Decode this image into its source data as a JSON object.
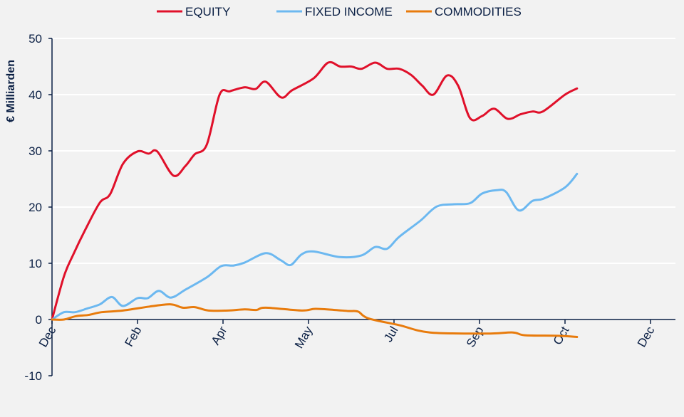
{
  "chart_data": {
    "type": "line",
    "title": "",
    "xlabel": "",
    "ylabel": "€ Milliarden",
    "ylim": [
      -10,
      50
    ],
    "yticks": [
      -10,
      0,
      10,
      20,
      30,
      40,
      50
    ],
    "xticks": [
      "Dec",
      "Feb",
      "Apr",
      "May",
      "Jul",
      "Sep",
      "Oct",
      "Dec"
    ],
    "x_unit": "position along the labelled x ticks (0 = first Dec, 7 = last Dec)",
    "grid": "horizontal",
    "legend_position": "top",
    "series": [
      {
        "name": "EQUITY",
        "color": "#e0102a",
        "points": [
          [
            0,
            0
          ],
          [
            0.14,
            7.7
          ],
          [
            0.25,
            11.6
          ],
          [
            0.39,
            16
          ],
          [
            0.56,
            20.8
          ],
          [
            0.68,
            22.3
          ],
          [
            0.83,
            27.7
          ],
          [
            1,
            29.9
          ],
          [
            1.13,
            29.5
          ],
          [
            1.23,
            29.9
          ],
          [
            1.42,
            25.6
          ],
          [
            1.56,
            27.3
          ],
          [
            1.67,
            29.4
          ],
          [
            1.81,
            31.1
          ],
          [
            1.96,
            40
          ],
          [
            2.08,
            40.6
          ],
          [
            2.25,
            41.3
          ],
          [
            2.38,
            41
          ],
          [
            2.5,
            42.3
          ],
          [
            2.68,
            39.5
          ],
          [
            2.81,
            40.8
          ],
          [
            3.06,
            42.9
          ],
          [
            3.23,
            45.7
          ],
          [
            3.37,
            45
          ],
          [
            3.5,
            45
          ],
          [
            3.62,
            44.6
          ],
          [
            3.78,
            45.7
          ],
          [
            3.92,
            44.6
          ],
          [
            4.06,
            44.6
          ],
          [
            4.2,
            43.5
          ],
          [
            4.33,
            41.6
          ],
          [
            4.46,
            40
          ],
          [
            4.62,
            43.4
          ],
          [
            4.75,
            41.6
          ],
          [
            4.89,
            35.8
          ],
          [
            5.03,
            36.2
          ],
          [
            5.17,
            37.5
          ],
          [
            5.33,
            35.7
          ],
          [
            5.48,
            36.5
          ],
          [
            5.62,
            37
          ],
          [
            5.74,
            37
          ],
          [
            6,
            40
          ],
          [
            6.14,
            41.1
          ]
        ]
      },
      {
        "name": "FIXED INCOME",
        "color": "#6cb8f0",
        "points": [
          [
            0,
            0
          ],
          [
            0.14,
            1.3
          ],
          [
            0.27,
            1.3
          ],
          [
            0.42,
            2
          ],
          [
            0.56,
            2.7
          ],
          [
            0.7,
            4
          ],
          [
            0.83,
            2.4
          ],
          [
            1,
            3.8
          ],
          [
            1.12,
            3.8
          ],
          [
            1.25,
            5.1
          ],
          [
            1.39,
            3.9
          ],
          [
            1.56,
            5.3
          ],
          [
            1.81,
            7.5
          ],
          [
            1.98,
            9.5
          ],
          [
            2.12,
            9.6
          ],
          [
            2.25,
            10.1
          ],
          [
            2.5,
            11.8
          ],
          [
            2.67,
            10.6
          ],
          [
            2.79,
            9.7
          ],
          [
            2.92,
            11.6
          ],
          [
            3.06,
            12.1
          ],
          [
            3.37,
            11.1
          ],
          [
            3.62,
            11.4
          ],
          [
            3.78,
            12.9
          ],
          [
            3.92,
            12.6
          ],
          [
            4.06,
            14.7
          ],
          [
            4.31,
            17.6
          ],
          [
            4.5,
            20.1
          ],
          [
            4.7,
            20.5
          ],
          [
            4.89,
            20.7
          ],
          [
            5.03,
            22.4
          ],
          [
            5.2,
            23
          ],
          [
            5.31,
            22.7
          ],
          [
            5.46,
            19.4
          ],
          [
            5.62,
            21.1
          ],
          [
            5.75,
            21.5
          ],
          [
            6,
            23.5
          ],
          [
            6.14,
            25.9
          ]
        ]
      },
      {
        "name": "COMMODITIES",
        "color": "#e87b0c",
        "points": [
          [
            0,
            0
          ],
          [
            0.14,
            0
          ],
          [
            0.28,
            0.6
          ],
          [
            0.42,
            0.8
          ],
          [
            0.58,
            1.3
          ],
          [
            0.83,
            1.6
          ],
          [
            1.14,
            2.3
          ],
          [
            1.39,
            2.7
          ],
          [
            1.53,
            2.1
          ],
          [
            1.67,
            2.2
          ],
          [
            1.83,
            1.6
          ],
          [
            2.06,
            1.6
          ],
          [
            2.25,
            1.8
          ],
          [
            2.39,
            1.7
          ],
          [
            2.5,
            2.1
          ],
          [
            2.92,
            1.6
          ],
          [
            3.08,
            1.9
          ],
          [
            3.31,
            1.7
          ],
          [
            3.47,
            1.5
          ],
          [
            3.58,
            1.4
          ],
          [
            3.7,
            0.2
          ],
          [
            4.06,
            -1
          ],
          [
            4.42,
            -2.3
          ],
          [
            5.08,
            -2.5
          ],
          [
            5.39,
            -2.3
          ],
          [
            5.53,
            -2.8
          ],
          [
            5.92,
            -2.9
          ],
          [
            6.14,
            -3.1
          ]
        ]
      }
    ]
  }
}
